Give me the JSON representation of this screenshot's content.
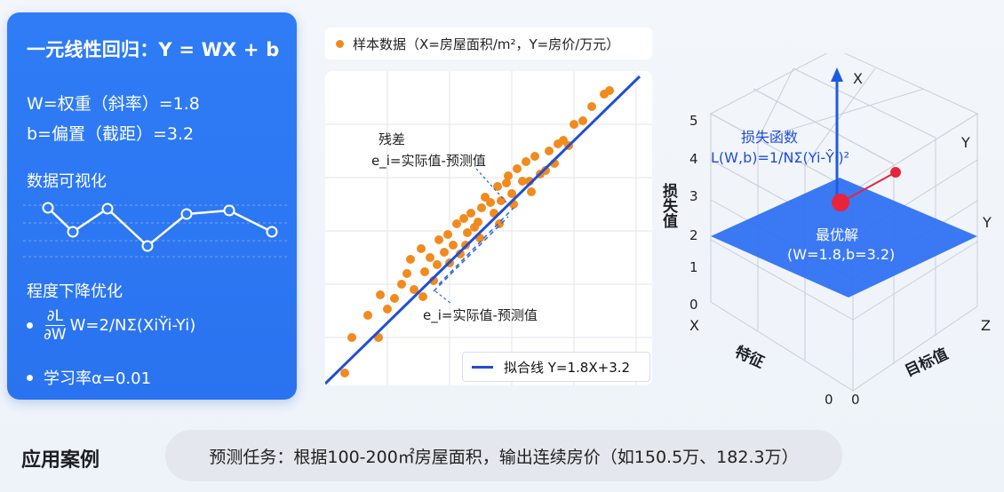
{
  "left_panel": {
    "title": "一元线性回归：Y = WX + b",
    "weight_line": "W=权重（斜率）=1.8",
    "bias_line": "b=偏置（截距）=3.2",
    "visual_heading": "数据可视化",
    "optimize_heading": "程度下降优化",
    "formula_num": "∂L",
    "formula_den": "∂W",
    "formula_rest": "W=2/NΣ(XiŸi-Yi)",
    "learning_rate": "学习率α=0.01"
  },
  "scatter": {
    "legend_label": "样本数据（X=房屋面积/m²，Y=房价/万元）",
    "residual_title": "残差",
    "residual_eq_top": "e_i=实际值-预测值",
    "residual_eq_bottom": "e_i=实际值-预测值",
    "fit_line_label": "拟合线 Y=1.8X+3.2",
    "colors": {
      "points": "#f28a1e",
      "fit_line": "#1f4ed8"
    }
  },
  "loss_surface": {
    "title": "损失函数",
    "formula": "L(W,b)=1/NΣ(Yi-Ŷi)²",
    "z_axis_label": "损失值",
    "z_ticks": [
      "0",
      "1",
      "2",
      "3",
      "4",
      "5"
    ],
    "optimum_label": "最优解",
    "optimum_value": "(W=1.8,b=3.2)",
    "axis_x_top": "X",
    "axis_y_upper": "Y",
    "axis_y_right": "Y",
    "axis_x_left": "X",
    "axis_z": "Z",
    "feature_label": "特征",
    "target_label": "目标值",
    "origin_left": "0",
    "origin_right": "0"
  },
  "bottom": {
    "title": "应用案例",
    "description": "预测任务：根据100-200㎡房屋面积，输出连续房价（如150.5万、182.3万）"
  }
}
